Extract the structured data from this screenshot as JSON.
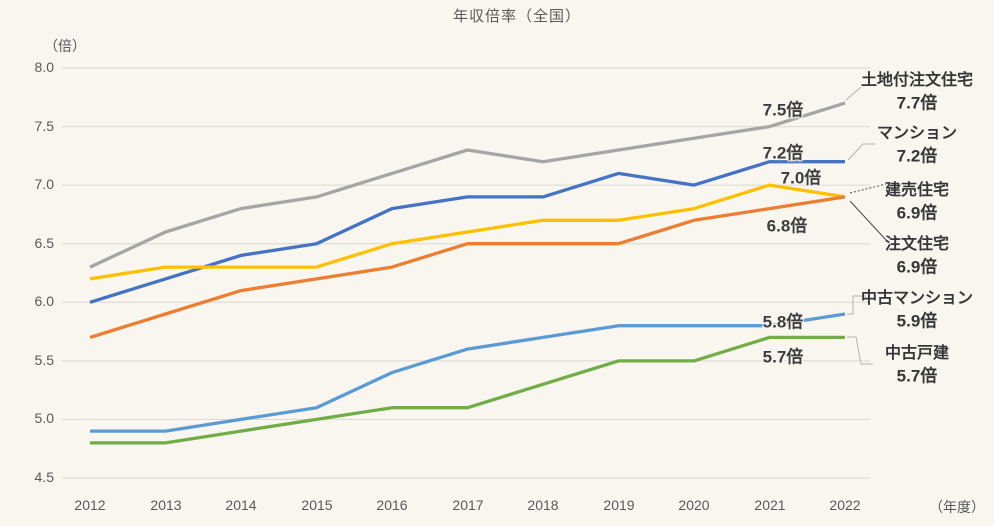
{
  "title": "年収倍率（全国）",
  "y_axis": {
    "unit_label": "（倍）",
    "ticks": [
      "8.0",
      "7.5",
      "7.0",
      "6.5",
      "6.0",
      "5.5",
      "5.0",
      "4.5"
    ]
  },
  "x_axis": {
    "unit_label": "（年度）",
    "ticks": [
      "2012",
      "2013",
      "2014",
      "2015",
      "2016",
      "2017",
      "2018",
      "2019",
      "2020",
      "2021",
      "2022"
    ]
  },
  "chart_data": {
    "type": "line",
    "title": "年収倍率（全国）",
    "x": [
      "2012",
      "2013",
      "2014",
      "2015",
      "2016",
      "2017",
      "2018",
      "2019",
      "2020",
      "2021",
      "2022"
    ],
    "xlabel": "（年度）",
    "ylabel": "（倍）",
    "ylim": [
      4.5,
      8.0
    ],
    "ytick_interval": 0.5,
    "grid": true,
    "legend_position": "right-edge-annotations",
    "series": [
      {
        "key": "tochitsuki-chumon-jutaku",
        "name": "土地付注文住宅",
        "color": "#a5a5a5",
        "values": [
          6.3,
          6.6,
          6.8,
          6.9,
          7.1,
          7.3,
          7.2,
          7.3,
          7.4,
          7.5,
          7.7
        ],
        "callout_2021": "7.5倍",
        "end_label": {
          "name": "土地付注文住宅",
          "value": "7.7倍"
        }
      },
      {
        "key": "mansion",
        "name": "マンション",
        "color": "#4472c4",
        "values": [
          6.0,
          6.2,
          6.4,
          6.5,
          6.8,
          6.9,
          6.9,
          7.1,
          7.0,
          7.2,
          7.2
        ],
        "callout_2021": "7.2倍",
        "end_label": {
          "name": "マンション",
          "value": "7.2倍"
        }
      },
      {
        "key": "tateuri-jutaku",
        "name": "建売住宅",
        "color": "#ffc000",
        "values": [
          6.2,
          6.3,
          6.3,
          6.3,
          6.5,
          6.6,
          6.7,
          6.7,
          6.8,
          7.0,
          6.9
        ],
        "callout_2021": "7.0倍",
        "end_label": {
          "name": "建売住宅",
          "value": "6.9倍"
        }
      },
      {
        "key": "chumon-jutaku",
        "name": "注文住宅",
        "color": "#ed7d31",
        "values": [
          5.7,
          5.9,
          6.1,
          6.2,
          6.3,
          6.5,
          6.5,
          6.5,
          6.7,
          6.8,
          6.9
        ],
        "callout_2021": "6.8倍",
        "end_label": {
          "name": "注文住宅",
          "value": "6.9倍"
        }
      },
      {
        "key": "chuko-mansion",
        "name": "中古マンション",
        "color": "#5b9bd5",
        "values": [
          4.9,
          4.9,
          5.0,
          5.1,
          5.4,
          5.6,
          5.7,
          5.8,
          5.8,
          5.8,
          5.9
        ],
        "callout_2021": "5.8倍",
        "end_label": {
          "name": "中古マンション",
          "value": "5.9倍"
        }
      },
      {
        "key": "chuko-kodate",
        "name": "中古戸建",
        "color": "#70ad47",
        "values": [
          4.8,
          4.8,
          4.9,
          5.0,
          5.1,
          5.1,
          5.3,
          5.5,
          5.5,
          5.7,
          5.7
        ],
        "callout_2021": "5.7倍",
        "end_label": {
          "name": "中古戸建",
          "value": "5.7倍"
        }
      }
    ]
  }
}
